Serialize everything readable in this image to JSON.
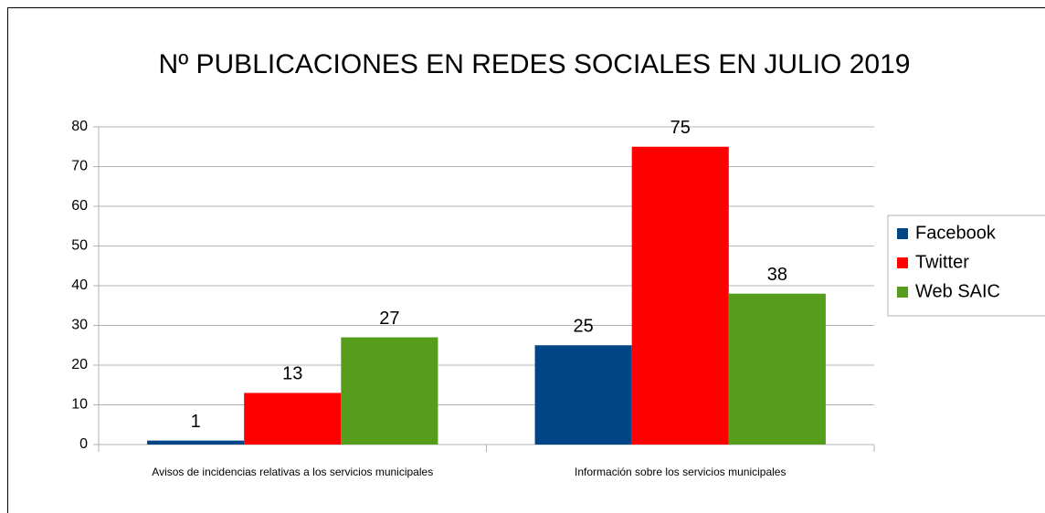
{
  "chart_data": {
    "type": "bar",
    "title": "Nº PUBLICACIONES EN REDES SOCIALES EN JULIO 2019",
    "categories": [
      "Avisos de incidencias relativas a los servicios municipales",
      "Información sobre los servicios municipales"
    ],
    "series": [
      {
        "name": "Facebook",
        "color": "#004586",
        "values": [
          1,
          25
        ]
      },
      {
        "name": "Twitter",
        "color": "#ff0000",
        "values": [
          13,
          75
        ]
      },
      {
        "name": "Web SAIC",
        "color": "#579d1c",
        "values": [
          27,
          38
        ]
      }
    ],
    "ylim": [
      0,
      80
    ],
    "yticks": [
      0,
      10,
      20,
      30,
      40,
      50,
      60,
      70,
      80
    ],
    "grid": true,
    "legend": "right"
  }
}
